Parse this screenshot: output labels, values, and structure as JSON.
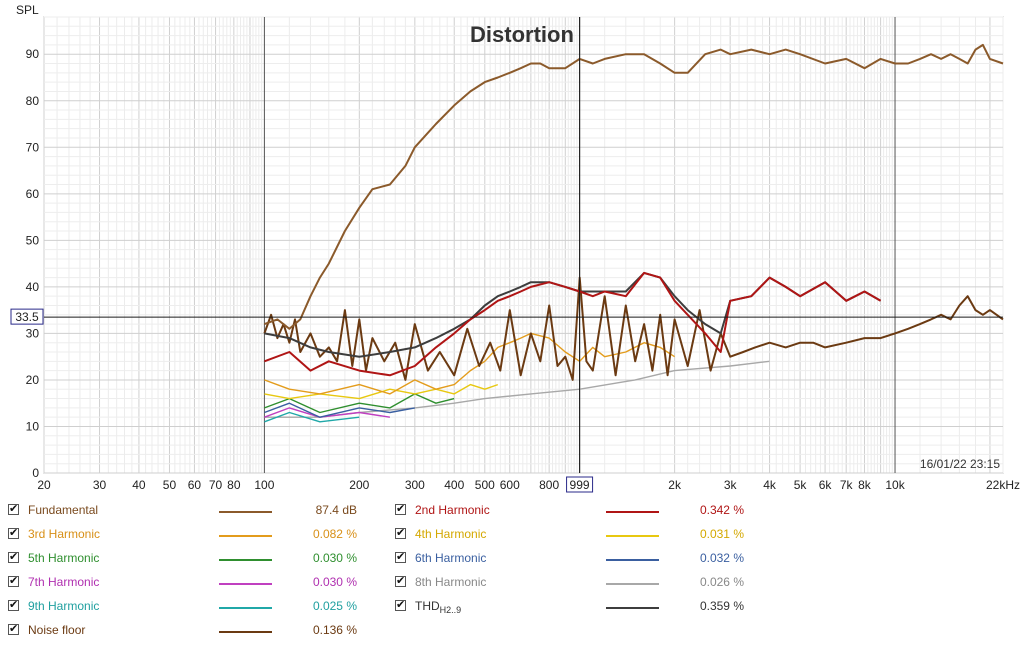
{
  "chart_data": {
    "type": "line",
    "title": "Distortion",
    "ylabel": "SPL",
    "xscale": "log",
    "xlim": [
      20,
      22000
    ],
    "ylim": [
      0,
      98
    ],
    "yticks": [
      0,
      10,
      20,
      30,
      40,
      50,
      60,
      70,
      80,
      90
    ],
    "xticks": [
      {
        "v": 20,
        "label": "20"
      },
      {
        "v": 30,
        "label": "30"
      },
      {
        "v": 40,
        "label": "40"
      },
      {
        "v": 50,
        "label": "50"
      },
      {
        "v": 60,
        "label": "60"
      },
      {
        "v": 70,
        "label": "70"
      },
      {
        "v": 80,
        "label": "80"
      },
      {
        "v": 100,
        "label": "100"
      },
      {
        "v": 200,
        "label": "200"
      },
      {
        "v": 300,
        "label": "300"
      },
      {
        "v": 400,
        "label": "400"
      },
      {
        "v": 500,
        "label": "500"
      },
      {
        "v": 600,
        "label": "600"
      },
      {
        "v": 800,
        "label": "800"
      },
      {
        "v": 2000,
        "label": "2k"
      },
      {
        "v": 3000,
        "label": "3k"
      },
      {
        "v": 4000,
        "label": "4k"
      },
      {
        "v": 5000,
        "label": "5k"
      },
      {
        "v": 6000,
        "label": "6k"
      },
      {
        "v": 7000,
        "label": "7k"
      },
      {
        "v": 8000,
        "label": "8k"
      },
      {
        "v": 10000,
        "label": "10k"
      },
      {
        "v": 22000,
        "label": "22kHz"
      }
    ],
    "cursor": {
      "x": 999,
      "x_label": "999",
      "y": 33.5,
      "y_label": "33.5"
    },
    "timestamp": "16/01/22 23:15",
    "grid": true,
    "series": [
      {
        "name": "Fundamental",
        "color": "#8b5a2b",
        "x": [
          100,
          110,
          120,
          130,
          140,
          150,
          160,
          180,
          200,
          220,
          250,
          280,
          300,
          350,
          400,
          450,
          500,
          550,
          600,
          650,
          700,
          750,
          800,
          900,
          1000,
          1100,
          1200,
          1400,
          1600,
          1800,
          2000,
          2200,
          2500,
          2800,
          3000,
          3500,
          4000,
          4500,
          5000,
          6000,
          7000,
          8000,
          9000,
          10000,
          11000,
          12000,
          13000,
          14000,
          15000,
          16000,
          17000,
          18000,
          19000,
          20000,
          22000
        ],
        "y": [
          32,
          33,
          31,
          33,
          38,
          42,
          45,
          52,
          57,
          61,
          62,
          66,
          70,
          75,
          79,
          82,
          84,
          85,
          86,
          87,
          88,
          88,
          87,
          87,
          89,
          88,
          89,
          90,
          90,
          88,
          86,
          86,
          90,
          91,
          90,
          91,
          90,
          91,
          90,
          88,
          89,
          87,
          89,
          88,
          88,
          89,
          90,
          89,
          90,
          89,
          88,
          91,
          92,
          89,
          88
        ]
      },
      {
        "name": "2nd Harmonic",
        "color": "#b01515",
        "x": [
          100,
          120,
          140,
          160,
          200,
          250,
          300,
          350,
          400,
          450,
          500,
          550,
          600,
          650,
          700,
          800,
          900,
          1000,
          1100,
          1200,
          1400,
          1600,
          1800,
          2000,
          2200,
          2500,
          2800,
          3000,
          3500,
          4000,
          4500,
          5000,
          6000,
          7000,
          8000,
          9000
        ],
        "y": [
          24,
          26,
          22,
          24,
          22,
          21,
          23,
          27,
          30,
          33,
          35,
          37,
          38,
          39,
          40,
          41,
          40,
          39,
          38,
          39,
          38,
          43,
          42,
          37,
          34,
          30,
          26,
          37,
          38,
          42,
          40,
          38,
          41,
          37,
          39,
          37
        ]
      },
      {
        "name": "3rd Harmonic",
        "color": "#e39c1c",
        "x": [
          100,
          120,
          150,
          200,
          250,
          300,
          350,
          400,
          450,
          500,
          550,
          600,
          650,
          700,
          800,
          900,
          1000,
          1100,
          1200,
          1400,
          1600,
          1800,
          2000
        ],
        "y": [
          20,
          18,
          17,
          19,
          17,
          20,
          18,
          19,
          22,
          24,
          27,
          28,
          29,
          30,
          29,
          26,
          24,
          27,
          25,
          26,
          28,
          27,
          25
        ]
      },
      {
        "name": "4th Harmonic",
        "color": "#e8c810",
        "x": [
          100,
          120,
          150,
          200,
          250,
          300,
          350,
          400,
          450,
          500,
          550
        ],
        "y": [
          17,
          16,
          17,
          16,
          18,
          17,
          18,
          17,
          19,
          18,
          19
        ]
      },
      {
        "name": "5th Harmonic",
        "color": "#2f8f2f",
        "x": [
          100,
          120,
          150,
          200,
          250,
          300,
          350,
          400
        ],
        "y": [
          14,
          16,
          13,
          15,
          14,
          17,
          15,
          16
        ]
      },
      {
        "name": "6th Harmonic",
        "color": "#3a5fa0",
        "x": [
          100,
          120,
          150,
          200,
          250,
          300
        ],
        "y": [
          13,
          15,
          12,
          14,
          13,
          14
        ]
      },
      {
        "name": "7th Harmonic",
        "color": "#c040c0",
        "x": [
          100,
          120,
          150,
          200,
          250
        ],
        "y": [
          12,
          14,
          12,
          13,
          12
        ]
      },
      {
        "name": "8th Harmonic",
        "color": "#a8a8a8",
        "x": [
          100,
          150,
          200,
          300,
          400,
          500,
          700,
          1000,
          1500,
          2000,
          3000,
          4000
        ],
        "y": [
          12,
          12,
          13,
          14,
          15,
          16,
          17,
          18,
          20,
          22,
          23,
          24
        ]
      },
      {
        "name": "9th Harmonic",
        "color": "#20a8a8",
        "x": [
          100,
          120,
          150,
          200
        ],
        "y": [
          11,
          13,
          11,
          12
        ]
      },
      {
        "name": "THD H2..9",
        "color": "#3d3d3d",
        "x": [
          100,
          120,
          140,
          160,
          200,
          250,
          300,
          350,
          400,
          450,
          500,
          550,
          600,
          650,
          700,
          800,
          900,
          1000,
          1100,
          1200,
          1400,
          1600,
          1800,
          2000,
          2200,
          2500,
          2800,
          3000,
          3500,
          4000,
          4500,
          5000,
          6000,
          7000,
          8000,
          9000
        ],
        "y": [
          30,
          29,
          27,
          26,
          25,
          26,
          27,
          29,
          31,
          33,
          36,
          38,
          39,
          40,
          41,
          41,
          40,
          39,
          39,
          39,
          39,
          43,
          42,
          38,
          35,
          32,
          30,
          37,
          38,
          42,
          40,
          38,
          41,
          37,
          39,
          37
        ]
      },
      {
        "name": "Noise floor",
        "color": "#6b3a12",
        "x": [
          100,
          105,
          110,
          115,
          120,
          125,
          130,
          140,
          150,
          160,
          170,
          180,
          190,
          200,
          210,
          220,
          240,
          260,
          280,
          300,
          330,
          360,
          400,
          440,
          480,
          520,
          560,
          600,
          650,
          700,
          750,
          800,
          850,
          900,
          950,
          1000,
          1050,
          1100,
          1200,
          1300,
          1400,
          1500,
          1600,
          1700,
          1800,
          1900,
          2000,
          2200,
          2400,
          2600,
          2800,
          3000,
          3300,
          3600,
          4000,
          4500,
          5000,
          5500,
          6000,
          7000,
          8000,
          9000,
          10000,
          11000,
          12000,
          13000,
          14000,
          15000,
          16000,
          17000,
          18000,
          19000,
          20000,
          21000,
          22000
        ],
        "y": [
          30,
          34,
          29,
          32,
          28,
          33,
          26,
          30,
          25,
          27,
          24,
          35,
          23,
          33,
          22,
          29,
          24,
          28,
          20,
          32,
          22,
          26,
          21,
          31,
          23,
          28,
          22,
          35,
          21,
          30,
          24,
          36,
          23,
          25,
          20,
          42,
          24,
          22,
          38,
          21,
          36,
          24,
          32,
          22,
          34,
          21,
          33,
          23,
          35,
          22,
          30,
          25,
          26,
          27,
          28,
          27,
          28,
          28,
          27,
          28,
          29,
          29,
          30,
          31,
          32,
          33,
          34,
          33,
          36,
          38,
          35,
          34,
          35,
          34,
          33
        ]
      }
    ]
  },
  "legend": {
    "items": [
      {
        "label": "Fundamental",
        "value": "87.4 dB",
        "color": "#8b5a2b",
        "label_color": "#7a4a1e"
      },
      {
        "label": "2nd Harmonic",
        "value": "0.342 %",
        "color": "#b01515",
        "label_color": "#b01515"
      },
      {
        "label": "3rd Harmonic",
        "value": "0.082 %",
        "color": "#e39c1c",
        "label_color": "#d89018"
      },
      {
        "label": "4th Harmonic",
        "value": "0.031 %",
        "color": "#e8c810",
        "label_color": "#d4a800"
      },
      {
        "label": "5th Harmonic",
        "value": "0.030 %",
        "color": "#2f8f2f",
        "label_color": "#2f8f2f"
      },
      {
        "label": "6th Harmonic",
        "value": "0.032 %",
        "color": "#3a5fa0",
        "label_color": "#3a5fa0"
      },
      {
        "label": "7th Harmonic",
        "value": "0.030 %",
        "color": "#c040c0",
        "label_color": "#b030b0"
      },
      {
        "label": "8th Harmonic",
        "value": "0.026 %",
        "color": "#a8a8a8",
        "label_color": "#888888"
      },
      {
        "label": "9th Harmonic",
        "value": "0.025 %",
        "color": "#20a8a8",
        "label_color": "#20a0a0"
      },
      {
        "label": "THD",
        "label_sub": "H2..9",
        "value": "0.359 %",
        "color": "#3d3d3d",
        "label_color": "#333333"
      },
      {
        "label": "Noise floor",
        "value": "0.136 %",
        "color": "#6b3a12",
        "label_color": "#6b3a12"
      }
    ]
  }
}
